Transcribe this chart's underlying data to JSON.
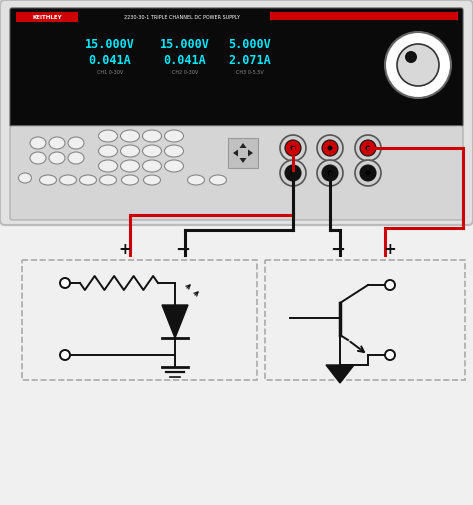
{
  "fig_w": 4.73,
  "fig_h": 5.05,
  "dpi": 100,
  "bg_color": "#f0f0f0",
  "device_face": "#e2e2e2",
  "device_edge": "#bbbbbb",
  "display_face": "#0a0a0a",
  "display_text": "#00e8ff",
  "display_sub": "#888888",
  "red": "#cc0000",
  "black": "#111111",
  "white": "#ffffff",
  "knob_face": "#d8d8d8",
  "terminal_gray": "#c8c8c8",
  "btn_face": "#f0f0f0",
  "btn_edge": "#888888",
  "panel_face": "#d5d5d5",
  "dash_color": "#aaaaaa",
  "wire_lw": 2.2,
  "circ_lw": 1.4,
  "ch_voltages": [
    "15.000V",
    "15.000V",
    "5.000V"
  ],
  "ch_currents": [
    "0.041A",
    "0.041A",
    "2.071A"
  ],
  "ch_labels": [
    "CH1 0-30V",
    "CH2 0-30V",
    "CH3 0-5.5V"
  ]
}
